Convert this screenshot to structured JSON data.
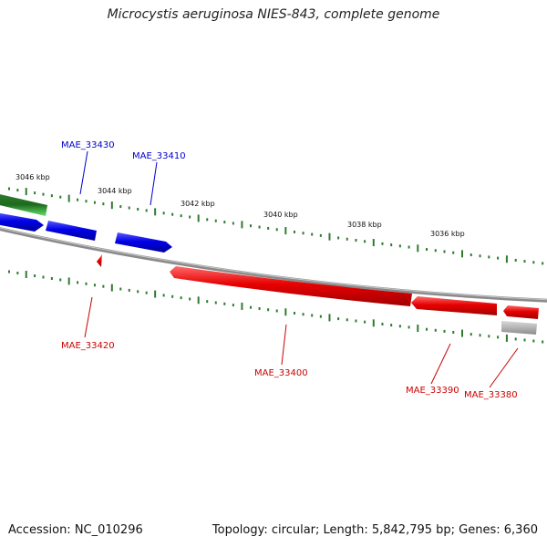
{
  "title": "Microcystis aeruginosa NIES-843, complete genome",
  "footer": {
    "accession": "Accession: NC_010296",
    "topology": "Topology: circular; Length: 5,842,795 bp; Genes: 6,360"
  },
  "colors": {
    "forward_gene": "#0000dd",
    "reverse_gene": "#dd0000",
    "green_gene": "#2a9a2a",
    "gray_gene": "#aaaaaa",
    "backbone": "#777777",
    "ticks": "#2f7a2f",
    "label_forward": "#0000cc",
    "label_reverse": "#cc0000"
  },
  "scale": {
    "unit": "kbp",
    "labels": [
      "3046 kbp",
      "3044 kbp",
      "3042 kbp",
      "3040 kbp",
      "3038 kbp",
      "3036 kbp"
    ]
  },
  "genes": {
    "forward": [
      {
        "name": "MAE_33430",
        "color": "blue"
      },
      {
        "name": "MAE_33410",
        "color": "blue"
      }
    ],
    "reverse": [
      {
        "name": "MAE_33420",
        "color": "red"
      },
      {
        "name": "MAE_33400",
        "color": "red"
      },
      {
        "name": "MAE_33390",
        "color": "red"
      },
      {
        "name": "MAE_33380",
        "color": "red"
      }
    ],
    "unlabeled": [
      {
        "color": "green"
      },
      {
        "color": "gray"
      }
    ]
  }
}
